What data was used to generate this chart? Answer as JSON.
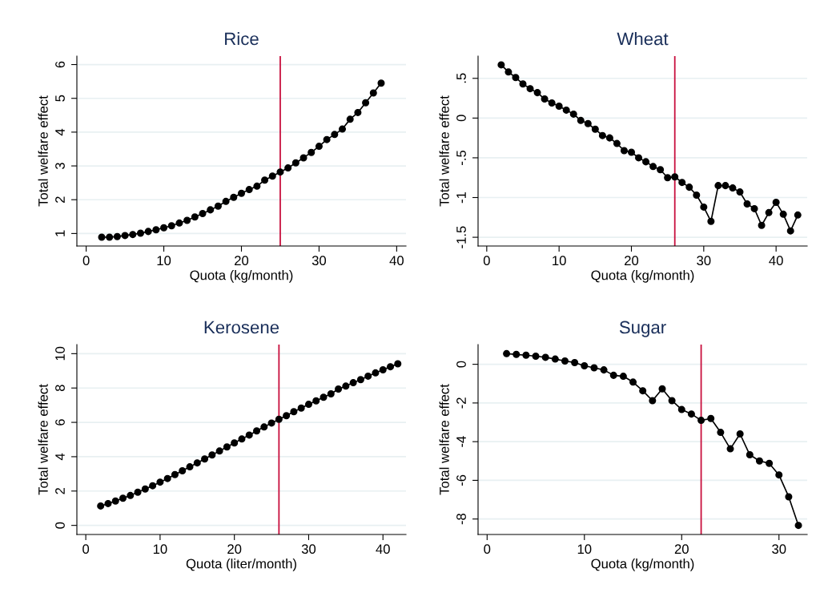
{
  "chart_data": [
    {
      "type": "line",
      "title": "Rice",
      "xlabel": "Quota (kg/month)",
      "ylabel": "Total welfare effect",
      "marker": "circle",
      "line_style": "solid",
      "grid": "y",
      "legend": false,
      "x": [
        2,
        3,
        4,
        5,
        6,
        7,
        8,
        9,
        10,
        11,
        12,
        13,
        14,
        15,
        16,
        17,
        18,
        19,
        20,
        21,
        22,
        23,
        24,
        25,
        26,
        27,
        28,
        29,
        30,
        31,
        32,
        33,
        34,
        35,
        36,
        37,
        38
      ],
      "series": [
        {
          "color": "#000000",
          "values": [
            0.89,
            0.89,
            0.91,
            0.94,
            0.97,
            1.01,
            1.06,
            1.11,
            1.17,
            1.23,
            1.31,
            1.39,
            1.49,
            1.59,
            1.7,
            1.81,
            1.95,
            2.07,
            2.19,
            2.3,
            2.4,
            2.58,
            2.7,
            2.82,
            2.94,
            3.09,
            3.24,
            3.4,
            3.58,
            3.78,
            3.93,
            4.09,
            4.38,
            4.58,
            4.87,
            5.16,
            5.45
          ]
        }
      ],
      "xlim": [
        -1.2,
        41.2
      ],
      "xticks": [
        0,
        10,
        20,
        30,
        40
      ],
      "ylim": [
        0.63,
        6.25
      ],
      "yticks": [
        1,
        2,
        3,
        4,
        5,
        6
      ],
      "ref_lines": [
        {
          "axis": "x",
          "value": 25,
          "color": "#c8103e"
        }
      ]
    },
    {
      "type": "line",
      "title": "Wheat",
      "xlabel": "Quota (kg/month)",
      "ylabel": "Total welfare effect",
      "marker": "circle",
      "line_style": "solid",
      "grid": "y",
      "legend": false,
      "x": [
        2,
        3,
        4,
        5,
        6,
        7,
        8,
        9,
        10,
        11,
        12,
        13,
        14,
        15,
        16,
        17,
        18,
        19,
        20,
        21,
        22,
        23,
        24,
        25,
        26,
        27,
        28,
        29,
        30,
        31,
        32,
        33,
        34,
        35,
        36,
        37,
        38,
        39,
        40,
        41,
        42,
        43
      ],
      "series": [
        {
          "color": "#000000",
          "values": [
            0.67,
            0.58,
            0.51,
            0.43,
            0.37,
            0.32,
            0.24,
            0.19,
            0.15,
            0.1,
            0.05,
            -0.03,
            -0.07,
            -0.14,
            -0.22,
            -0.25,
            -0.32,
            -0.41,
            -0.43,
            -0.5,
            -0.55,
            -0.61,
            -0.65,
            -0.75,
            -0.74,
            -0.81,
            -0.87,
            -0.97,
            -1.12,
            -1.3,
            -0.85,
            -0.85,
            -0.88,
            -0.93,
            -1.08,
            -1.14,
            -1.35,
            -1.19,
            -1.06,
            -1.21,
            -1.42,
            -1.22
          ]
        }
      ],
      "xlim": [
        -1.2,
        44.3
      ],
      "xticks": [
        0,
        10,
        20,
        30,
        40
      ],
      "ylim": [
        -1.61,
        0.78
      ],
      "yticks": [
        {
          "value": -1.5,
          "label": "-1.5"
        },
        {
          "value": -1,
          "label": "-1"
        },
        {
          "value": -0.5,
          "label": "-.5"
        },
        0,
        {
          "value": 0.5,
          "label": ".5"
        }
      ],
      "ref_lines": [
        {
          "axis": "x",
          "value": 26,
          "color": "#c8103e"
        }
      ]
    },
    {
      "type": "line",
      "title": "Kerosene",
      "xlabel": "Quota (liter/month)",
      "ylabel": "Total welfare effect",
      "marker": "circle",
      "line_style": "solid",
      "grid": "y",
      "legend": false,
      "x": [
        2,
        3,
        4,
        5,
        6,
        7,
        8,
        9,
        10,
        11,
        12,
        13,
        14,
        15,
        16,
        17,
        18,
        19,
        20,
        21,
        22,
        23,
        24,
        25,
        26,
        27,
        28,
        29,
        30,
        31,
        32,
        33,
        34,
        35,
        36,
        37,
        38,
        39,
        40,
        41,
        42
      ],
      "series": [
        {
          "color": "#000000",
          "values": [
            1.13,
            1.27,
            1.42,
            1.58,
            1.74,
            1.93,
            2.12,
            2.31,
            2.52,
            2.73,
            2.96,
            3.18,
            3.41,
            3.64,
            3.87,
            4.1,
            4.33,
            4.57,
            4.8,
            5.03,
            5.26,
            5.5,
            5.73,
            5.96,
            6.18,
            6.39,
            6.62,
            6.83,
            7.05,
            7.25,
            7.46,
            7.66,
            7.94,
            8.11,
            8.31,
            8.49,
            8.69,
            8.88,
            9.06,
            9.24,
            9.41
          ]
        }
      ],
      "xlim": [
        -1.2,
        43.1
      ],
      "xticks": [
        0,
        10,
        20,
        30,
        40
      ],
      "ylim": [
        -0.53,
        10.53
      ],
      "yticks": [
        0,
        2,
        4,
        6,
        8,
        10
      ],
      "ref_lines": [
        {
          "axis": "x",
          "value": 26,
          "color": "#c8103e"
        }
      ]
    },
    {
      "type": "line",
      "title": "Sugar",
      "xlabel": "Quota (kg/month)",
      "ylabel": "Total welfare effect",
      "marker": "circle",
      "line_style": "solid",
      "grid": "y",
      "legend": false,
      "x": [
        2,
        3,
        4,
        5,
        6,
        7,
        8,
        9,
        10,
        11,
        12,
        13,
        14,
        15,
        16,
        17,
        18,
        19,
        20,
        21,
        22,
        23,
        24,
        25,
        26,
        27,
        28,
        29,
        30,
        31,
        32
      ],
      "series": [
        {
          "color": "#000000",
          "values": [
            0.55,
            0.51,
            0.47,
            0.42,
            0.36,
            0.27,
            0.17,
            0.09,
            -0.08,
            -0.18,
            -0.29,
            -0.57,
            -0.62,
            -0.92,
            -1.37,
            -1.88,
            -1.27,
            -1.88,
            -2.34,
            -2.57,
            -2.9,
            -2.8,
            -3.52,
            -4.37,
            -3.6,
            -4.68,
            -5.0,
            -5.12,
            -5.72,
            -6.85,
            -8.33
          ]
        }
      ],
      "xlim": [
        -0.93,
        32.9
      ],
      "xticks": [
        0,
        10,
        20,
        30
      ],
      "ylim": [
        -8.8,
        1.02
      ],
      "yticks": [
        -8,
        -6,
        -4,
        -2,
        0
      ],
      "ref_lines": [
        {
          "axis": "x",
          "value": 22,
          "color": "#c8103e"
        }
      ]
    }
  ]
}
